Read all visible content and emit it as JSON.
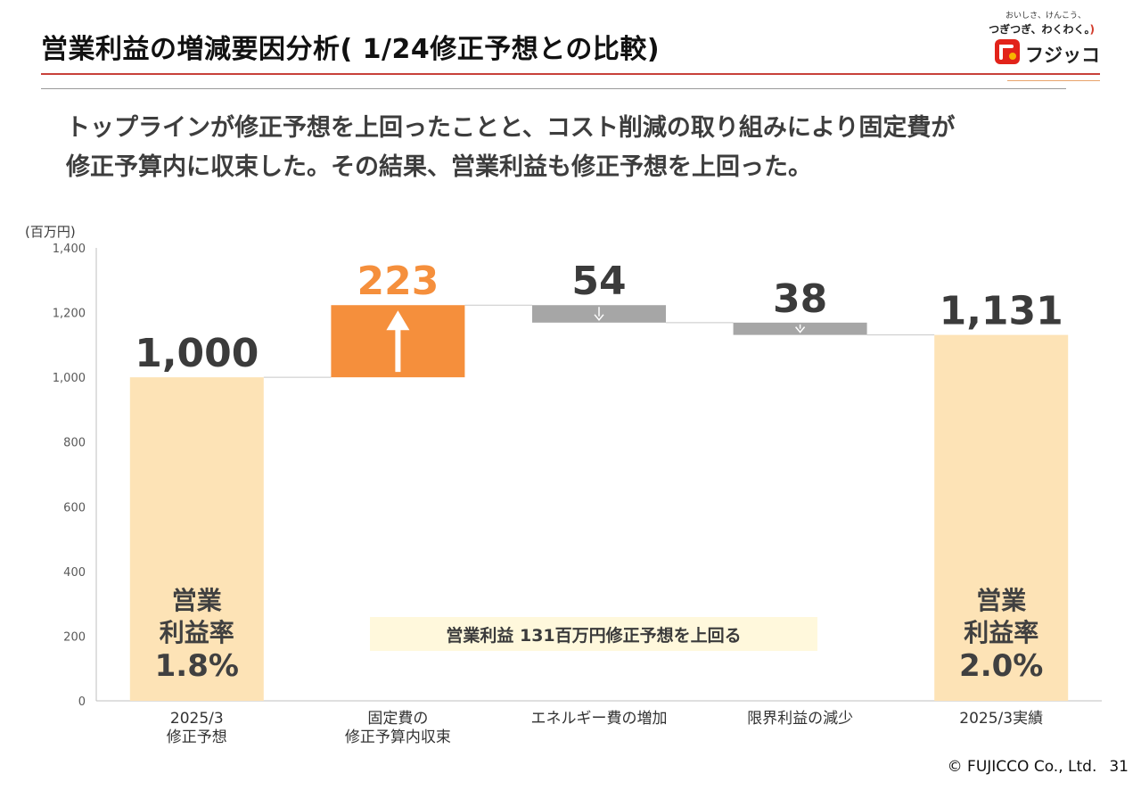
{
  "header": {
    "title": "営業利益の増減要因分析( 1/24修正予想との比較)"
  },
  "logo": {
    "tagline_small": "おいしさ、けんこう、",
    "tagline": "つぎつぎ、わくわく。",
    "tagline_close": ")",
    "wordmark": "フジッコ"
  },
  "headline": {
    "line1": "トップラインが修正予想を上回ったことと、コスト削減の取り組みにより固定費が",
    "line2": "修正予算内に収束した。その結果、営業利益も修正予想を上回った。"
  },
  "chart_data": {
    "type": "bar",
    "subtype": "waterfall",
    "unit_label": "(百万円)",
    "ylim": [
      0,
      1400
    ],
    "yticks": [
      0,
      200,
      400,
      600,
      800,
      1000,
      1200,
      1400
    ],
    "ytick_labels": [
      "0",
      "200",
      "400",
      "600",
      "800",
      "1,000",
      "1,200",
      "1,400"
    ],
    "grid": false,
    "categories": [
      [
        "2025/3",
        "修正予想"
      ],
      [
        "固定費の",
        "修正予算内収束"
      ],
      [
        "エネルギー費の増加"
      ],
      [
        "限界利益の減少"
      ],
      [
        "2025/3実績"
      ]
    ],
    "bars": [
      {
        "kind": "total",
        "start": 0,
        "end": 1000,
        "label": "1,000",
        "color": "#fde3b6",
        "inner_lines": [
          "営業",
          "利益率",
          "1.8%"
        ]
      },
      {
        "kind": "increase",
        "start": 1000,
        "end": 1223,
        "label": "223",
        "color": "#f58f3c",
        "label_color": "#f58f3c",
        "arrow": "up"
      },
      {
        "kind": "decrease",
        "start": 1223,
        "end": 1169,
        "label": "54",
        "color": "#a6a6a6",
        "arrow": "down"
      },
      {
        "kind": "decrease",
        "start": 1169,
        "end": 1131,
        "label": "38",
        "color": "#a6a6a6",
        "arrow": "down"
      },
      {
        "kind": "total",
        "start": 0,
        "end": 1131,
        "label": "1,131",
        "color": "#fde3b6",
        "inner_lines": [
          "営業",
          "利益率",
          "2.0%"
        ]
      }
    ],
    "annotation": "営業利益  131百万円修正予想を上回る",
    "colors": {
      "axis": "#bfbfbf",
      "connector": "#c8c8c8",
      "label": "#3b3b3b",
      "tick": "#595959"
    }
  },
  "footer": {
    "copyright": "© FUJICCO Co., Ltd.",
    "page_number": "31"
  }
}
